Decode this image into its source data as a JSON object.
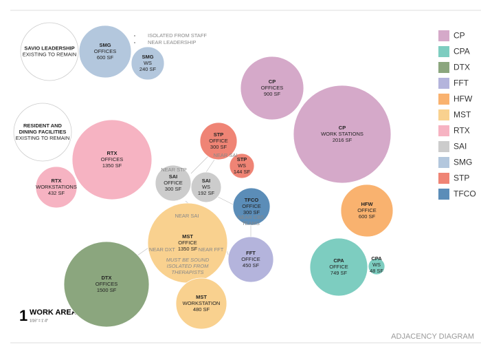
{
  "nodes": [
    {
      "title": [
        "SAVIO LEADERSHIP"
      ],
      "text": [
        "EXISTING TO REMAIN"
      ],
      "color": "#ffffff"
    },
    {
      "title": [
        "SMG"
      ],
      "text": [
        "OFFICES",
        "600 SF"
      ],
      "color": "#b3c7dd"
    },
    {
      "title": [
        "SMG"
      ],
      "text": [
        "WS",
        "240 SF"
      ],
      "color": "#b3c7dd"
    },
    {
      "title": [
        "RESIDENT AND",
        "DINING FACILITIES"
      ],
      "text": [
        "EXISTING TO REMAIN"
      ],
      "color": "#ffffff"
    },
    {
      "title": [
        "RTX"
      ],
      "text": [
        "OFFICES",
        "1350 SF"
      ],
      "color": "#f6b3c2"
    },
    {
      "title": [
        "RTX"
      ],
      "text": [
        "WORKSTATIONS",
        "432 SF"
      ],
      "color": "#f6b3c2"
    },
    {
      "title": [
        "STP"
      ],
      "text": [
        "OFFICE",
        "300 SF"
      ],
      "color": "#ef8475"
    },
    {
      "title": [
        "STP"
      ],
      "text": [
        "WS",
        "144 SF"
      ],
      "color": "#ef8475"
    },
    {
      "title": [
        "SAI"
      ],
      "text": [
        "OFFICE",
        "300 SF"
      ],
      "color": "#cccccc"
    },
    {
      "title": [
        "SAI"
      ],
      "text": [
        "WS",
        "192 SF"
      ],
      "color": "#cccccc"
    },
    {
      "title": [
        "TFCO"
      ],
      "text": [
        "OFFICE",
        "300 SF"
      ],
      "color": "#5b8db8"
    },
    {
      "title": [
        "MST"
      ],
      "text": [
        "OFFICE",
        "1350 SF"
      ],
      "color": "#f9d18f"
    },
    {
      "title": [
        "FFT"
      ],
      "text": [
        "OFFICE",
        "450 SF"
      ],
      "color": "#b4b4dc"
    },
    {
      "title": [
        "DTX"
      ],
      "text": [
        "OFFICES",
        "1500 SF"
      ],
      "color": "#8ba67e"
    },
    {
      "title": [
        "MST"
      ],
      "text": [
        "WORKSTATION",
        "480 SF"
      ],
      "color": "#f9d18f"
    },
    {
      "title": [
        "CP"
      ],
      "text": [
        "OFFICES",
        "900 SF"
      ],
      "color": "#d5a9c9"
    },
    {
      "title": [
        "CP"
      ],
      "text": [
        "WORK STATIONS",
        "2016 SF"
      ],
      "color": "#d5a9c9"
    },
    {
      "title": [
        "HFW"
      ],
      "text": [
        "OFFICE",
        "600 SF"
      ],
      "color": "#f9b26f"
    },
    {
      "title": [
        "CPA"
      ],
      "text": [
        "OFFICE",
        "749 SF"
      ],
      "color": "#7dcdc0"
    },
    {
      "title": [
        "CPA"
      ],
      "text": [
        "WS",
        "48 SF"
      ],
      "color": "#7dcdc0"
    }
  ],
  "notes": [
    {
      "lines": [
        "ISOLATED FROM STAFF"
      ]
    },
    {
      "lines": [
        "NEAR LEADERSHIP"
      ]
    },
    {
      "lines": [
        "NEAR STP"
      ]
    },
    {
      "lines": [
        "NEAR SAI"
      ]
    },
    {
      "lines": [
        "NEAR SAI"
      ]
    },
    {
      "lines": [
        "NEAR CBS",
        "TEAMS"
      ]
    },
    {
      "lines": [
        "NEAR DXT"
      ]
    },
    {
      "lines": [
        "NEAR FFT"
      ]
    },
    {
      "lines": [
        "MUST BE SOUND",
        "ISOLATED FROM",
        "THERAPISTS"
      ]
    }
  ],
  "legend": [
    {
      "label": "CP",
      "color": "#d5a9c9"
    },
    {
      "label": "CPA",
      "color": "#7dcdc0"
    },
    {
      "label": "DTX",
      "color": "#8ba67e"
    },
    {
      "label": "FFT",
      "color": "#b4b4dc"
    },
    {
      "label": "HFW",
      "color": "#f9b26f"
    },
    {
      "label": "MST",
      "color": "#f9d18f"
    },
    {
      "label": "RTX",
      "color": "#f6b3c2"
    },
    {
      "label": "SAI",
      "color": "#cccccc"
    },
    {
      "label": "SMG",
      "color": "#b3c7dd"
    },
    {
      "label": "STP",
      "color": "#ef8475"
    },
    {
      "label": "TFCO",
      "color": "#5b8db8"
    }
  ],
  "footer": {
    "number": "1",
    "title": "WORK AREA",
    "scale": "1/16\" = 1'-0\"",
    "caption": "ADJACENCY DIAGRAM"
  }
}
